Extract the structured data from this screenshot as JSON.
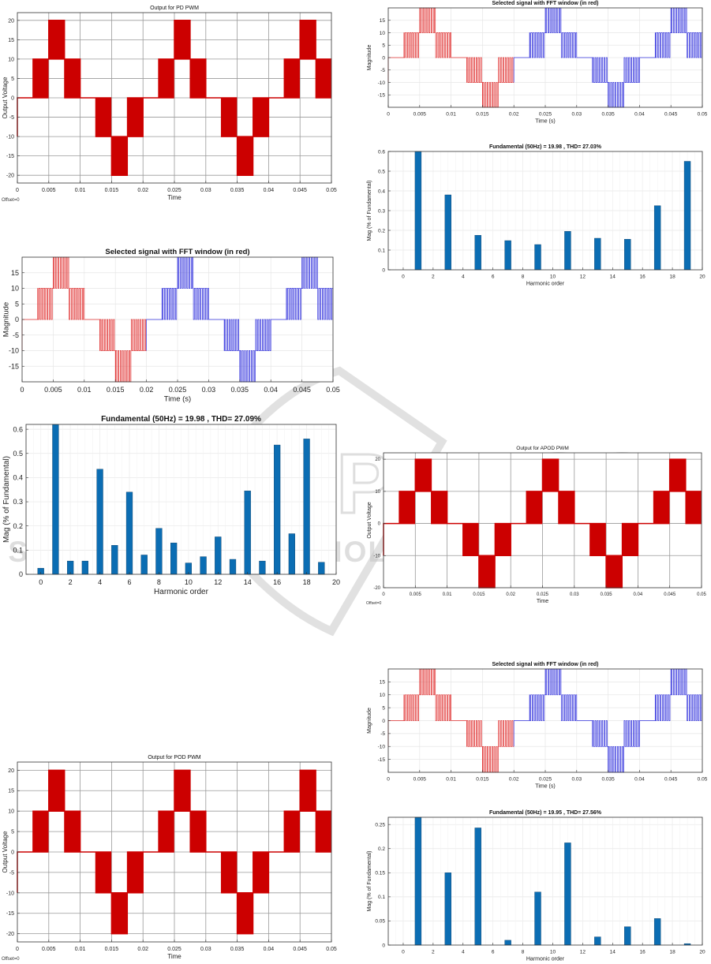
{
  "chart_data": [
    {
      "id": "pd_output",
      "type": "line",
      "title": "Output for PD PWM",
      "xlabel": "Time",
      "ylabel": "Output Voltage",
      "xlim": [
        0,
        0.05
      ],
      "ylim": [
        -22,
        22
      ],
      "xticks": [
        0,
        0.005,
        0.01,
        0.015,
        0.02,
        0.025,
        0.03,
        0.035,
        0.04,
        0.045,
        0.05
      ],
      "xtick_labels": [
        "0",
        "0.005",
        "0.01",
        "0.015",
        "0.02",
        "0.025",
        "0.03",
        "0.035",
        "0.04",
        "0.045",
        "0.05"
      ],
      "yticks": [
        -20,
        -15,
        -10,
        -5,
        0,
        5,
        10,
        15,
        20
      ],
      "ytick_labels": [
        "-20",
        "-15",
        "-10",
        "-5",
        "0",
        "5",
        "10",
        "15",
        "20"
      ],
      "footer": "Offset=0",
      "grid": "major",
      "series": [
        {
          "name": "Output Voltage",
          "color": "#cc0000",
          "signal": "staircase",
          "levels": [
            0,
            10,
            20,
            10,
            0,
            -10,
            -20,
            -10
          ],
          "period": 0.02,
          "step": 0.0025,
          "switching": true
        }
      ]
    },
    {
      "id": "pd_fft_signal",
      "type": "line",
      "title": "Selected signal with FFT window (in red)",
      "xlabel": "Time (s)",
      "ylabel": "Magnitude",
      "xlim": [
        0,
        0.05
      ],
      "ylim": [
        -20,
        20
      ],
      "xticks": [
        0,
        0.005,
        0.01,
        0.015,
        0.02,
        0.025,
        0.03,
        0.035,
        0.04,
        0.045,
        0.05
      ],
      "xtick_labels": [
        "0",
        "0.005",
        "0.01",
        "0.015",
        "0.02",
        "0.025",
        "0.03",
        "0.035",
        "0.04",
        "0.045",
        "0.05"
      ],
      "yticks": [
        -15,
        -10,
        -5,
        0,
        5,
        10,
        15
      ],
      "ytick_labels": [
        "-15",
        "-10",
        "-5",
        "0",
        "5",
        "10",
        "15"
      ],
      "window_end": 0.02,
      "series": [
        {
          "name": "FFT window",
          "color": "#e03030"
        },
        {
          "name": "rest of signal",
          "color": "#3333dd"
        }
      ]
    },
    {
      "id": "pd_fft_spectrum",
      "type": "bar",
      "title": "Fundamental (50Hz) = 19.98 , THD= 27.09%",
      "xlabel": "Harmonic order",
      "ylabel": "Mag (% of Fundamental)",
      "xlim": [
        -1,
        20
      ],
      "ylim": [
        0,
        0.62
      ],
      "xticks": [
        0,
        2,
        4,
        6,
        8,
        10,
        12,
        14,
        16,
        18,
        20
      ],
      "xtick_labels": [
        "0",
        "2",
        "4",
        "6",
        "8",
        "10",
        "12",
        "14",
        "16",
        "18",
        "20"
      ],
      "yticks": [
        0,
        0.1,
        0.2,
        0.3,
        0.4,
        0.5,
        0.6
      ],
      "ytick_labels": [
        "0",
        "0.1",
        "0.2",
        "0.3",
        "0.4",
        "0.5",
        "0.6"
      ],
      "bar_color": "#0b6db3",
      "x": [
        0,
        1,
        2,
        3,
        4,
        5,
        6,
        7,
        8,
        9,
        10,
        11,
        12,
        13,
        14,
        15,
        16,
        17,
        18,
        19
      ],
      "values": [
        0.025,
        0.62,
        0.055,
        0.055,
        0.435,
        0.12,
        0.34,
        0.08,
        0.19,
        0.13,
        0.047,
        0.073,
        0.155,
        0.062,
        0.345,
        0.055,
        0.535,
        0.168,
        0.56,
        0.05
      ]
    },
    {
      "id": "pod_output",
      "type": "line",
      "title": "Output for POD PWM",
      "xlabel": "Time",
      "ylabel": "Output Voltage",
      "xlim": [
        0,
        0.05
      ],
      "ylim": [
        -22,
        22
      ],
      "xticks": [
        0,
        0.005,
        0.01,
        0.015,
        0.02,
        0.025,
        0.03,
        0.035,
        0.04,
        0.045,
        0.05
      ],
      "xtick_labels": [
        "0",
        "0.005",
        "0.01",
        "0.015",
        "0.02",
        "0.025",
        "0.03",
        "0.035",
        "0.04",
        "0.045",
        "0.05"
      ],
      "yticks": [
        -20,
        -15,
        -10,
        -5,
        0,
        5,
        10,
        15,
        20
      ],
      "ytick_labels": [
        "-20",
        "-15",
        "-10",
        "-5",
        "0",
        "5",
        "10",
        "15",
        "20"
      ],
      "footer": "Offset=0",
      "grid": "major",
      "series": [
        {
          "name": "Output Voltage",
          "color": "#cc0000",
          "signal": "staircase",
          "levels": [
            0,
            10,
            20,
            10,
            0,
            -10,
            -20,
            -10
          ],
          "period": 0.02,
          "step": 0.0025,
          "switching": true
        }
      ]
    },
    {
      "id": "pod_fft_signal",
      "type": "line",
      "title": "Selected signal with FFT window (in red)",
      "xlabel": "Time (s)",
      "ylabel": "Magnitude",
      "xlim": [
        0,
        0.05
      ],
      "ylim": [
        -20,
        20
      ],
      "xticks": [
        0,
        0.005,
        0.01,
        0.015,
        0.02,
        0.025,
        0.03,
        0.035,
        0.04,
        0.045,
        0.05
      ],
      "xtick_labels": [
        "0",
        "0.005",
        "0.01",
        "0.015",
        "0.02",
        "0.025",
        "0.03",
        "0.035",
        "0.04",
        "0.045",
        "0.05"
      ],
      "yticks": [
        -15,
        -10,
        -5,
        0,
        5,
        10,
        15
      ],
      "ytick_labels": [
        "-15",
        "-10",
        "-5",
        "0",
        "5",
        "10",
        "15"
      ],
      "window_end": 0.02,
      "series": [
        {
          "name": "FFT window",
          "color": "#e03030"
        },
        {
          "name": "rest of signal",
          "color": "#3333dd"
        }
      ]
    },
    {
      "id": "pod_fft_spectrum",
      "type": "bar",
      "title": "Fundamental (50Hz) = 19.98 , THD= 27.03%",
      "xlabel": "Harmonic order",
      "ylabel": "Mag (% of Fundamental)",
      "xlim": [
        -1,
        20
      ],
      "ylim": [
        0,
        0.6
      ],
      "xticks": [
        0,
        2,
        4,
        6,
        8,
        10,
        12,
        14,
        16,
        18,
        20
      ],
      "xtick_labels": [
        "0",
        "2",
        "4",
        "6",
        "8",
        "10",
        "12",
        "14",
        "16",
        "18",
        "20"
      ],
      "yticks": [
        0,
        0.1,
        0.2,
        0.3,
        0.4,
        0.5,
        0.6
      ],
      "ytick_labels": [
        "0",
        "0.1",
        "0.2",
        "0.3",
        "0.4",
        "0.5",
        "0.6"
      ],
      "bar_color": "#0b6db3",
      "x": [
        1,
        3,
        5,
        7,
        9,
        11,
        13,
        15,
        17,
        19
      ],
      "values": [
        0.6,
        0.38,
        0.175,
        0.148,
        0.128,
        0.195,
        0.16,
        0.155,
        0.325,
        0.55
      ]
    },
    {
      "id": "apod_output",
      "type": "line",
      "title": "Output for APOD PWM",
      "xlabel": "Time",
      "ylabel": "Output Voltage",
      "xlim": [
        0,
        0.05
      ],
      "ylim": [
        -20,
        22
      ],
      "xticks": [
        0,
        0.005,
        0.01,
        0.015,
        0.02,
        0.025,
        0.03,
        0.035,
        0.04,
        0.045,
        0.05
      ],
      "xtick_labels": [
        "0",
        "0.005",
        "0.01",
        "0.015",
        "0.02",
        "0.025",
        "0.03",
        "0.035",
        "0.04",
        "0.045",
        "0.05"
      ],
      "yticks": [
        -20,
        -10,
        0,
        10,
        20
      ],
      "ytick_labels": [
        "-20",
        "-10",
        "0",
        "10",
        "20"
      ],
      "footer": "Offset=0",
      "grid": "major",
      "series": [
        {
          "name": "Output Voltage",
          "color": "#cc0000",
          "signal": "staircase",
          "levels": [
            0,
            10,
            20,
            10,
            0,
            -10,
            -20,
            -10
          ],
          "period": 0.02,
          "step": 0.0025,
          "switching": true
        }
      ]
    },
    {
      "id": "apod_fft_signal",
      "type": "line",
      "title": "Selected signal with FFT window (in red)",
      "xlabel": "Time (s)",
      "ylabel": "Magnitude",
      "xlim": [
        0,
        0.05
      ],
      "ylim": [
        -20,
        20
      ],
      "xticks": [
        0,
        0.005,
        0.01,
        0.015,
        0.02,
        0.025,
        0.03,
        0.035,
        0.04,
        0.045,
        0.05
      ],
      "xtick_labels": [
        "0",
        "0.005",
        "0.01",
        "0.015",
        "0.02",
        "0.025",
        "0.03",
        "0.035",
        "0.04",
        "0.045",
        "0.05"
      ],
      "yticks": [
        -15,
        -10,
        -5,
        0,
        5,
        10,
        15
      ],
      "ytick_labels": [
        "-15",
        "-10",
        "-5",
        "0",
        "5",
        "10",
        "15"
      ],
      "window_end": 0.02,
      "series": [
        {
          "name": "FFT window",
          "color": "#e03030"
        },
        {
          "name": "rest of signal",
          "color": "#3333dd"
        }
      ]
    },
    {
      "id": "apod_fft_spectrum",
      "type": "bar",
      "title": "Fundamental (50Hz) = 19.95 , THD= 27.56%",
      "xlabel": "Harmonic order",
      "ylabel": "Mag (% of Fundamental)",
      "xlim": [
        -1,
        20
      ],
      "ylim": [
        0,
        0.265
      ],
      "xticks": [
        0,
        2,
        4,
        6,
        8,
        10,
        12,
        14,
        16,
        18,
        20
      ],
      "xtick_labels": [
        "0",
        "2",
        "4",
        "6",
        "8",
        "10",
        "12",
        "14",
        "16",
        "18",
        "20"
      ],
      "yticks": [
        0,
        0.05,
        0.1,
        0.15,
        0.2,
        0.25
      ],
      "ytick_labels": [
        "0",
        "0.05",
        "0.1",
        "0.15",
        "0.2",
        "0.25"
      ],
      "bar_color": "#0b6db3",
      "x": [
        1,
        3,
        5,
        7,
        9,
        11,
        13,
        15,
        17,
        19
      ],
      "values": [
        0.265,
        0.15,
        0.243,
        0.01,
        0.11,
        0.212,
        0.017,
        0.038,
        0.055,
        0.003
      ]
    }
  ],
  "watermark": {
    "line1": "SCITEPRESS",
    "line2": "SCIENCE AND TECHNOLOGY PUBLICATIONS",
    "color": "#b8b8b8"
  }
}
